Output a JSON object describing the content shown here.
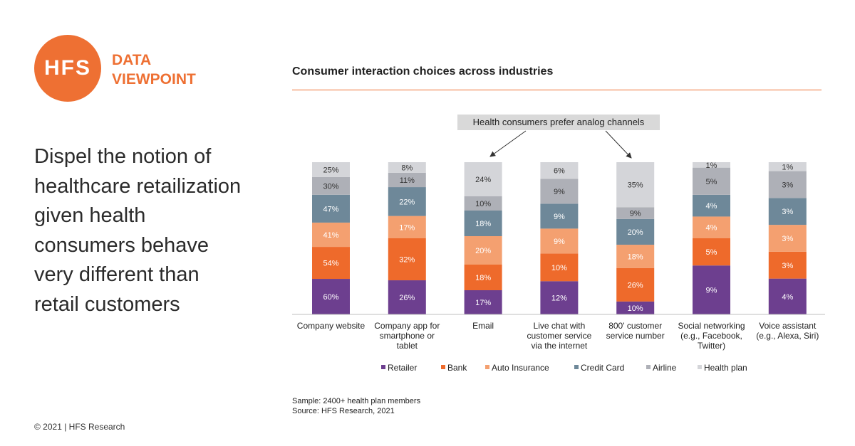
{
  "brand": {
    "logo": "HFS",
    "tag_line1": "DATA",
    "tag_line2": "VIEWPOINT",
    "accent_color": "#ee7033"
  },
  "headline": "Dispel the notion of healthcare retailization given health consumers behave very different than retail customers",
  "copyright": "© 2021 | HFS Research",
  "callout": "Health consumers prefer analog channels",
  "notes": {
    "sample": "Sample: 2400+ health plan members",
    "source": "Source: HFS Research, 2021"
  },
  "chart_data": {
    "type": "bar",
    "stacked": true,
    "title": "Consumer interaction choices across industries",
    "categories": [
      [
        "Company website"
      ],
      [
        "Company app for",
        "smartphone or",
        "tablet"
      ],
      [
        "Email"
      ],
      [
        "Live chat with",
        "customer service",
        "via the internet"
      ],
      [
        "800' customer",
        "service number"
      ],
      [
        "Social networking",
        "(e.g., Facebook,",
        "Twitter)"
      ],
      [
        "Voice assistant",
        "(e.g., Alexa, Siri)"
      ]
    ],
    "series": [
      {
        "name": "Retailer",
        "color": "#6d3f8f",
        "values": [
          60,
          26,
          17,
          12,
          10,
          9,
          4
        ]
      },
      {
        "name": "Bank",
        "color": "#ee6a2b",
        "values": [
          54,
          32,
          18,
          10,
          26,
          5,
          3
        ]
      },
      {
        "name": "Auto Insurance",
        "color": "#f4a070",
        "values": [
          41,
          17,
          20,
          9,
          18,
          4,
          3
        ]
      },
      {
        "name": "Credit Card",
        "color": "#6e8899",
        "values": [
          47,
          22,
          18,
          9,
          20,
          4,
          3
        ]
      },
      {
        "name": "Airline",
        "color": "#aeb0b7",
        "values": [
          30,
          11,
          10,
          9,
          9,
          5,
          3
        ]
      },
      {
        "name": "Health plan",
        "color": "#d4d5d9",
        "values": [
          25,
          8,
          24,
          6,
          35,
          1,
          1
        ]
      }
    ],
    "value_suffix": "%",
    "normalized": true,
    "legend_position": "bottom",
    "grid": false
  }
}
